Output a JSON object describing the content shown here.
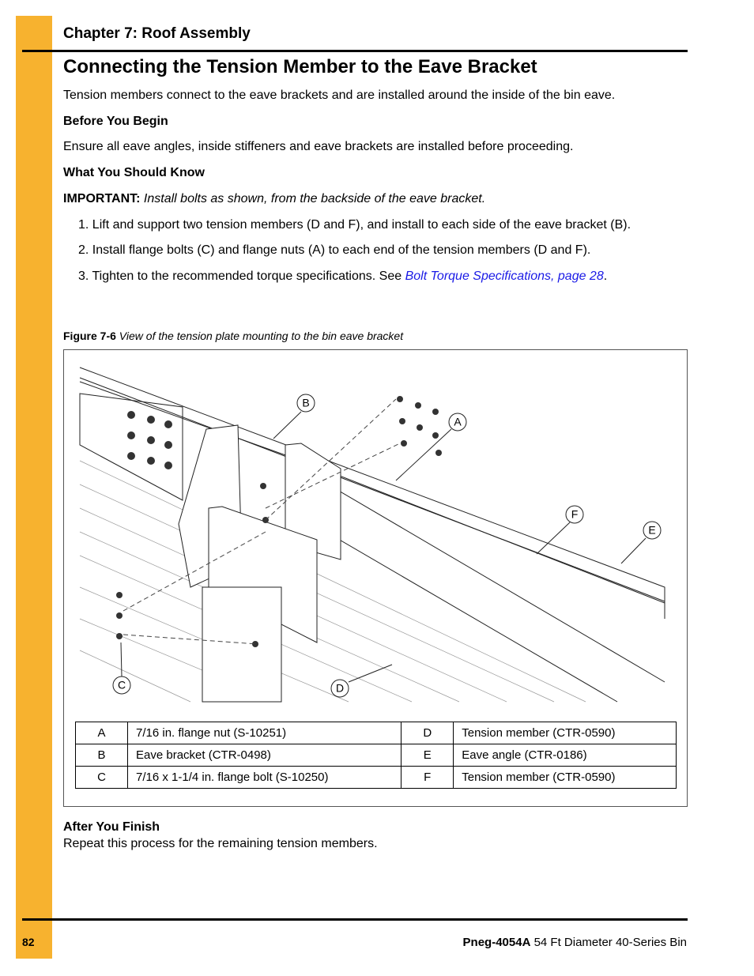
{
  "header": {
    "chapter": "Chapter 7: Roof Assembly"
  },
  "title": "Connecting the Tension Member to the Eave Bracket",
  "intro": "Tension members connect to the eave brackets and are installed around the inside of the bin eave.",
  "before": {
    "heading": "Before You Begin",
    "text": "Ensure all eave angles, inside stiffeners and eave brackets are installed before proceeding."
  },
  "know": {
    "heading": "What You Should Know",
    "label": "IMPORTANT:",
    "text": "Install bolts as shown, from the backside of the eave bracket."
  },
  "steps": [
    {
      "number": "1.",
      "text": "Lift and support two tension members (D and F), and install to each side of the eave bracket (B)."
    },
    {
      "number": "2.",
      "text": "Install flange bolts (C) and flange nuts (A) to each end of the tension members (D and F)."
    },
    {
      "number": "3.",
      "text": "Tighten to the recommended torque specifications. See",
      "link": "Bolt Torque Specifications, page 28",
      "end": "."
    }
  ],
  "figure": {
    "label": "Figure 7-6",
    "caption": "View of the tension plate mounting to the bin eave bracket",
    "callouts": [
      "B",
      "A",
      "F",
      "E",
      "C",
      "D"
    ],
    "table": {
      "rows": [
        [
          "A",
          "7/16 in. flange nut (S-10251)",
          "D",
          "Tension member (CTR-0590)"
        ],
        [
          "B",
          "Eave bracket (CTR-0498)",
          "E",
          "Eave angle (CTR-0186)"
        ],
        [
          "C",
          "7/16 x 1-1/4 in. flange bolt (S-10250)",
          "F",
          "Tension member (CTR-0590)"
        ]
      ]
    }
  },
  "after": {
    "heading": "After You Finish",
    "text": "Repeat this process for the remaining tension members."
  },
  "footer": {
    "page": "82",
    "doc": "Pneg-4054A",
    "subtitle": "54 Ft Diameter 40-Series Bin"
  }
}
